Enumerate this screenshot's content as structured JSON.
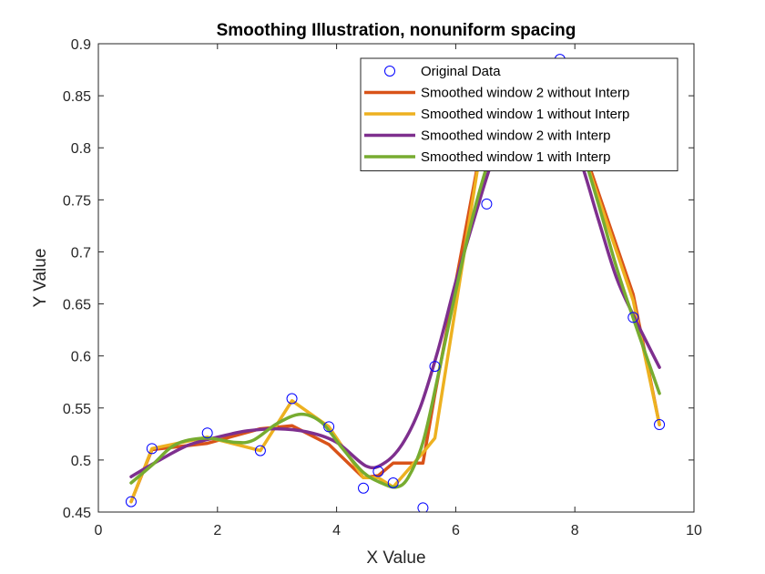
{
  "chart_data": {
    "type": "line",
    "title": "Smoothing Illustration, nonuniform spacing",
    "xlabel": "X Value",
    "ylabel": "Y Value",
    "xlim": [
      0,
      10
    ],
    "ylim": [
      0.45,
      0.9
    ],
    "xticks": [
      "0",
      "2",
      "4",
      "6",
      "8",
      "10"
    ],
    "yticks": [
      "0.45",
      "0.5",
      "0.55",
      "0.6",
      "0.65",
      "0.7",
      "0.75",
      "0.8",
      "0.85",
      "0.9"
    ],
    "grid": false,
    "legend_position": "top-right",
    "series": [
      {
        "name": "Original Data",
        "style": "markers",
        "color": "#0000ff",
        "x": [
          0.55,
          0.9,
          1.83,
          2.72,
          3.25,
          3.87,
          4.45,
          4.7,
          4.95,
          5.45,
          5.65,
          6.52,
          7.75,
          8.98,
          9.42
        ],
        "y": [
          0.46,
          0.511,
          0.526,
          0.509,
          0.559,
          0.532,
          0.473,
          0.489,
          0.478,
          0.454,
          0.59,
          0.746,
          0.885,
          0.637,
          0.534
        ]
      },
      {
        "name": "Smoothed window 2 without Interp",
        "style": "line",
        "color": "#d95319",
        "x": [
          0.55,
          0.9,
          1.83,
          2.72,
          3.25,
          3.87,
          4.45,
          4.7,
          4.95,
          5.45,
          5.65,
          6.52,
          7.75,
          8.98,
          9.42
        ],
        "y": [
          0.46,
          0.51,
          0.516,
          0.53,
          0.533,
          0.515,
          0.483,
          0.485,
          0.497,
          0.497,
          0.563,
          0.83,
          0.865,
          0.659,
          0.534
        ]
      },
      {
        "name": "Smoothed window 1 without Interp",
        "style": "line",
        "color": "#edb120",
        "x": [
          0.55,
          0.9,
          1.83,
          2.72,
          3.25,
          3.87,
          4.45,
          4.7,
          4.95,
          5.45,
          5.65,
          6.52,
          7.75,
          8.98,
          9.42
        ],
        "y": [
          0.46,
          0.511,
          0.522,
          0.509,
          0.557,
          0.532,
          0.483,
          0.483,
          0.474,
          0.507,
          0.521,
          0.835,
          0.861,
          0.653,
          0.534
        ]
      },
      {
        "name": "Smoothed window 2 with Interp",
        "style": "line",
        "color": "#7e2f8e",
        "x": [
          0.55,
          1.0,
          1.5,
          2.0,
          2.5,
          3.0,
          3.5,
          4.0,
          4.5,
          4.8,
          5.1,
          5.4,
          5.7,
          6.0,
          6.3,
          6.6,
          6.9,
          7.2,
          7.5,
          7.8,
          8.1,
          8.4,
          8.7,
          9.0,
          9.42
        ],
        "y": [
          0.484,
          0.499,
          0.514,
          0.522,
          0.528,
          0.53,
          0.527,
          0.517,
          0.494,
          0.497,
          0.515,
          0.55,
          0.605,
          0.671,
          0.73,
          0.785,
          0.822,
          0.842,
          0.847,
          0.83,
          0.787,
          0.73,
          0.675,
          0.637,
          0.589
        ]
      },
      {
        "name": "Smoothed window 1 with Interp",
        "style": "line",
        "color": "#77ac30",
        "x": [
          0.55,
          0.9,
          1.3,
          1.8,
          2.3,
          2.6,
          3.0,
          3.4,
          3.75,
          4.1,
          4.45,
          4.75,
          5.0,
          5.2,
          5.45,
          5.7,
          6.0,
          6.3,
          6.6,
          6.9,
          7.2,
          7.5,
          7.8,
          8.1,
          8.4,
          8.7,
          9.0,
          9.42
        ],
        "y": [
          0.478,
          0.495,
          0.515,
          0.521,
          0.517,
          0.519,
          0.535,
          0.544,
          0.536,
          0.511,
          0.488,
          0.478,
          0.474,
          0.483,
          0.517,
          0.58,
          0.662,
          0.737,
          0.795,
          0.83,
          0.845,
          0.846,
          0.832,
          0.8,
          0.745,
          0.685,
          0.633,
          0.564
        ]
      }
    ]
  }
}
